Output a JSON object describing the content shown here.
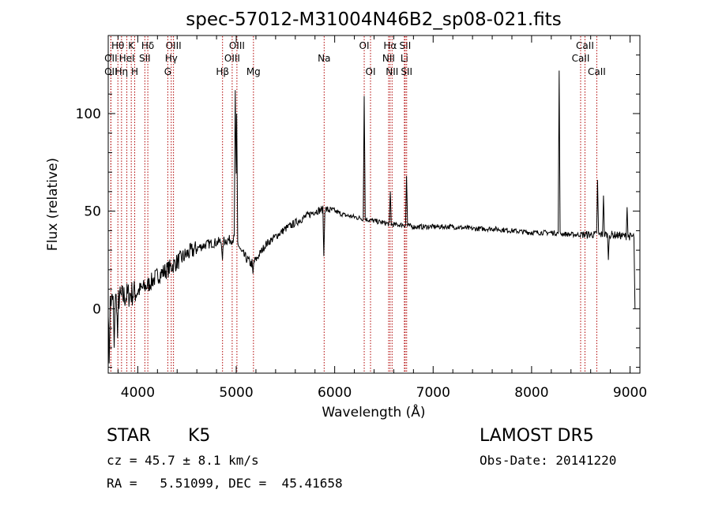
{
  "chart_data": {
    "type": "line",
    "title": "spec-57012-M31004N46B2_sp08-021.fits",
    "xlabel": "Wavelength (Å)",
    "ylabel": "Flux (relative)",
    "xlim": [
      3700,
      9100
    ],
    "ylim": [
      -33,
      140
    ],
    "x_ticks": [
      4000,
      5000,
      6000,
      7000,
      8000,
      9000
    ],
    "x_tick_labels": [
      "4000",
      "5000",
      "6000",
      "7000",
      "8000",
      "9000"
    ],
    "y_ticks": [
      0,
      50,
      100
    ],
    "y_tick_labels": [
      "0",
      "50",
      "100"
    ],
    "series_color": "#000000",
    "line_marker_color": "#b00000",
    "spectrum": {
      "continuum": [
        [
          3700,
          3
        ],
        [
          3800,
          5
        ],
        [
          3900,
          7
        ],
        [
          4000,
          9
        ],
        [
          4100,
          12
        ],
        [
          4200,
          17
        ],
        [
          4300,
          20
        ],
        [
          4400,
          24
        ],
        [
          4500,
          28
        ],
        [
          4600,
          31
        ],
        [
          4700,
          33
        ],
        [
          4800,
          34
        ],
        [
          4900,
          35
        ],
        [
          5000,
          36
        ],
        [
          5050,
          29
        ],
        [
          5100,
          26
        ],
        [
          5150,
          23
        ],
        [
          5200,
          25
        ],
        [
          5300,
          33
        ],
        [
          5400,
          37
        ],
        [
          5500,
          41
        ],
        [
          5600,
          44
        ],
        [
          5700,
          47
        ],
        [
          5800,
          50
        ],
        [
          5900,
          51
        ],
        [
          6000,
          50
        ],
        [
          6100,
          48
        ],
        [
          6200,
          47
        ],
        [
          6300,
          46
        ],
        [
          6400,
          45
        ],
        [
          6500,
          44
        ],
        [
          6600,
          43
        ],
        [
          6700,
          43
        ],
        [
          6800,
          42
        ],
        [
          7000,
          42
        ],
        [
          7200,
          42
        ],
        [
          7400,
          41
        ],
        [
          7600,
          41
        ],
        [
          7800,
          40
        ],
        [
          8000,
          39
        ],
        [
          8200,
          39
        ],
        [
          8400,
          38
        ],
        [
          8600,
          38
        ],
        [
          8800,
          38
        ],
        [
          9000,
          37
        ],
        [
          9050,
          37
        ]
      ],
      "features": [
        {
          "x": 3710,
          "y": -28
        },
        {
          "x": 3760,
          "y": -20
        },
        {
          "x": 3795,
          "y": -15
        },
        {
          "x": 4860,
          "y": 25
        },
        {
          "x": 4990,
          "y": 112
        },
        {
          "x": 5003,
          "y": 100
        },
        {
          "x": 5170,
          "y": 18
        },
        {
          "x": 5890,
          "y": 27
        },
        {
          "x": 6300,
          "y": 109
        },
        {
          "x": 6565,
          "y": 60
        },
        {
          "x": 6730,
          "y": 68
        },
        {
          "x": 8280,
          "y": 122
        },
        {
          "x": 8670,
          "y": 66
        },
        {
          "x": 8730,
          "y": 58
        },
        {
          "x": 8780,
          "y": 25
        },
        {
          "x": 8970,
          "y": 52
        },
        {
          "x": 9050,
          "y": 0
        }
      ]
    },
    "spectral_lines": [
      {
        "label": "Hθ",
        "x": 3798,
        "row": 1
      },
      {
        "label": "OII",
        "x": 3727,
        "row": 2
      },
      {
        "label": "OII",
        "x": 3727,
        "row": 3
      },
      {
        "label": "K",
        "x": 3934,
        "row": 1
      },
      {
        "label": "HeI",
        "x": 3889,
        "row": 2
      },
      {
        "label": "Hη",
        "x": 3835,
        "row": 3
      },
      {
        "label": "H",
        "x": 3969,
        "row": 3
      },
      {
        "label": "Hδ",
        "x": 4102,
        "row": 1
      },
      {
        "label": "SII",
        "x": 4072,
        "row": 2
      },
      {
        "label": "OIII",
        "x": 4363,
        "row": 1
      },
      {
        "label": "Hγ",
        "x": 4340,
        "row": 2
      },
      {
        "label": "G",
        "x": 4305,
        "row": 3
      },
      {
        "label": "Hβ",
        "x": 4861,
        "row": 3
      },
      {
        "label": "OIII",
        "x": 5007,
        "row": 1
      },
      {
        "label": "OIII",
        "x": 4959,
        "row": 2
      },
      {
        "label": "Mg",
        "x": 5175,
        "row": 3
      },
      {
        "label": "Na",
        "x": 5893,
        "row": 2
      },
      {
        "label": "OI",
        "x": 6300,
        "row": 1
      },
      {
        "label": "OI",
        "x": 6364,
        "row": 3
      },
      {
        "label": "Hα",
        "x": 6563,
        "row": 1
      },
      {
        "label": "NII",
        "x": 6548,
        "row": 2
      },
      {
        "label": "NII",
        "x": 6583,
        "row": 3
      },
      {
        "label": "SII",
        "x": 6716,
        "row": 1
      },
      {
        "label": "Li",
        "x": 6708,
        "row": 2
      },
      {
        "label": "SII",
        "x": 6731,
        "row": 3
      },
      {
        "label": "CaII",
        "x": 8542,
        "row": 1
      },
      {
        "label": "CaII",
        "x": 8498,
        "row": 2
      },
      {
        "label": "CaII",
        "x": 8662,
        "row": 3
      }
    ]
  },
  "info": {
    "class_label": "STAR",
    "subclass": "K5",
    "survey": "LAMOST DR5",
    "cz_text": "cz = 45.7 ± 8.1 km/s",
    "obs_date": "Obs-Date: 20141220",
    "coords": "RA =   5.51099, DEC =  45.41658"
  }
}
